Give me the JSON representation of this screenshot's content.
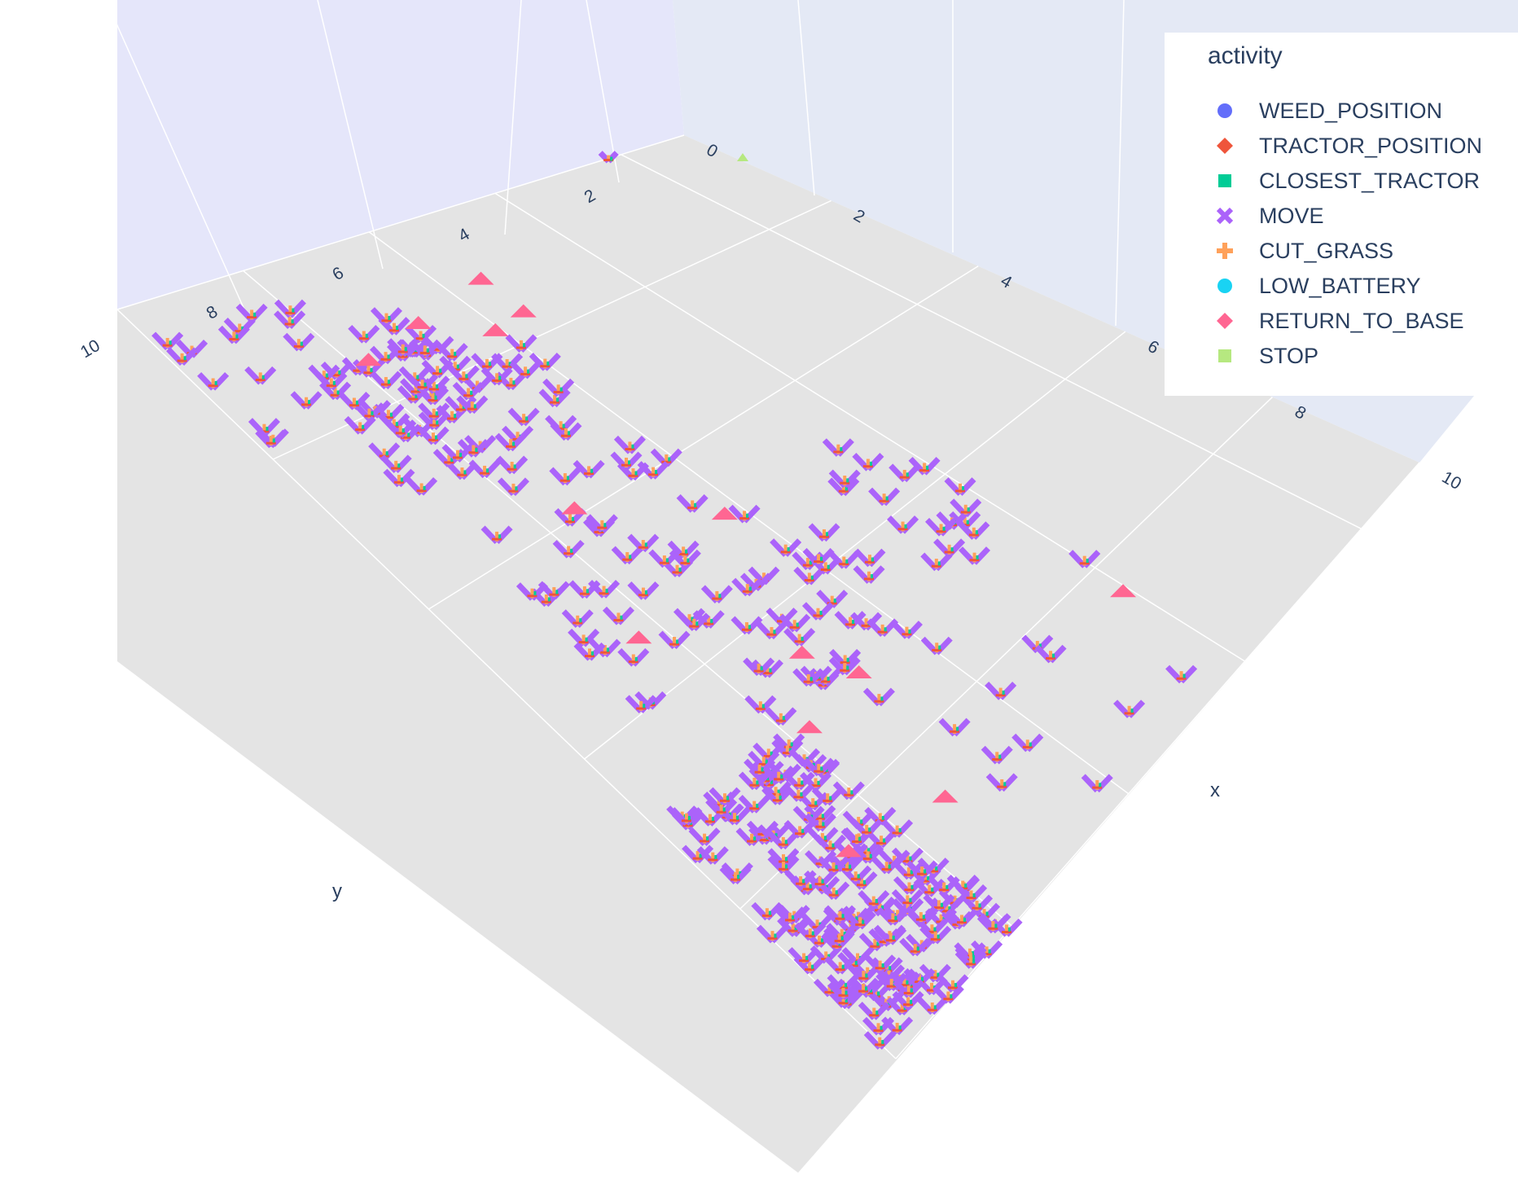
{
  "chart_data": {
    "type": "scatter",
    "dimensions": "3d",
    "title": "",
    "xlabel": "x",
    "ylabel": "y",
    "zlabel": "",
    "x_ticks": [
      "0",
      "2",
      "4",
      "6",
      "8",
      "10"
    ],
    "y_ticks": [
      "2",
      "4",
      "6",
      "8",
      "10"
    ],
    "xlim": [
      0,
      10
    ],
    "ylim": [
      1,
      10
    ],
    "grid": true,
    "legend": {
      "title": "activity",
      "placement": "top-right",
      "items": [
        {
          "name": "WEED_POSITION",
          "symbol": "circle",
          "color": "#636efa"
        },
        {
          "name": "TRACTOR_POSITION",
          "symbol": "diamond",
          "color": "#EF553B"
        },
        {
          "name": "CLOSEST_TRACTOR",
          "symbol": "square",
          "color": "#00cc96"
        },
        {
          "name": "MOVE",
          "symbol": "x",
          "color": "#ab63fa"
        },
        {
          "name": "CUT_GRASS",
          "symbol": "cross",
          "color": "#FFA15A"
        },
        {
          "name": "LOW_BATTERY",
          "symbol": "circle",
          "color": "#19d3f3"
        },
        {
          "name": "RETURN_TO_BASE",
          "symbol": "diamond",
          "color": "#FF6692"
        },
        {
          "name": "STOP",
          "symbol": "square",
          "color": "#B6E880"
        }
      ]
    },
    "clusters": [
      {
        "x": [
          1,
          2.5
        ],
        "y": [
          6.5,
          8.5
        ],
        "n": 40
      },
      {
        "x": [
          0.5,
          2
        ],
        "y": [
          8,
          10
        ],
        "n": 20
      },
      {
        "x": [
          2,
          6
        ],
        "y": [
          6,
          9
        ],
        "n": 70
      },
      {
        "x": [
          5,
          7
        ],
        "y": [
          4,
          8
        ],
        "n": 40
      },
      {
        "x": [
          7,
          10
        ],
        "y": [
          8,
          10
        ],
        "n": 180
      },
      {
        "x": [
          6,
          10
        ],
        "y": [
          4,
          7
        ],
        "n": 20
      }
    ]
  }
}
